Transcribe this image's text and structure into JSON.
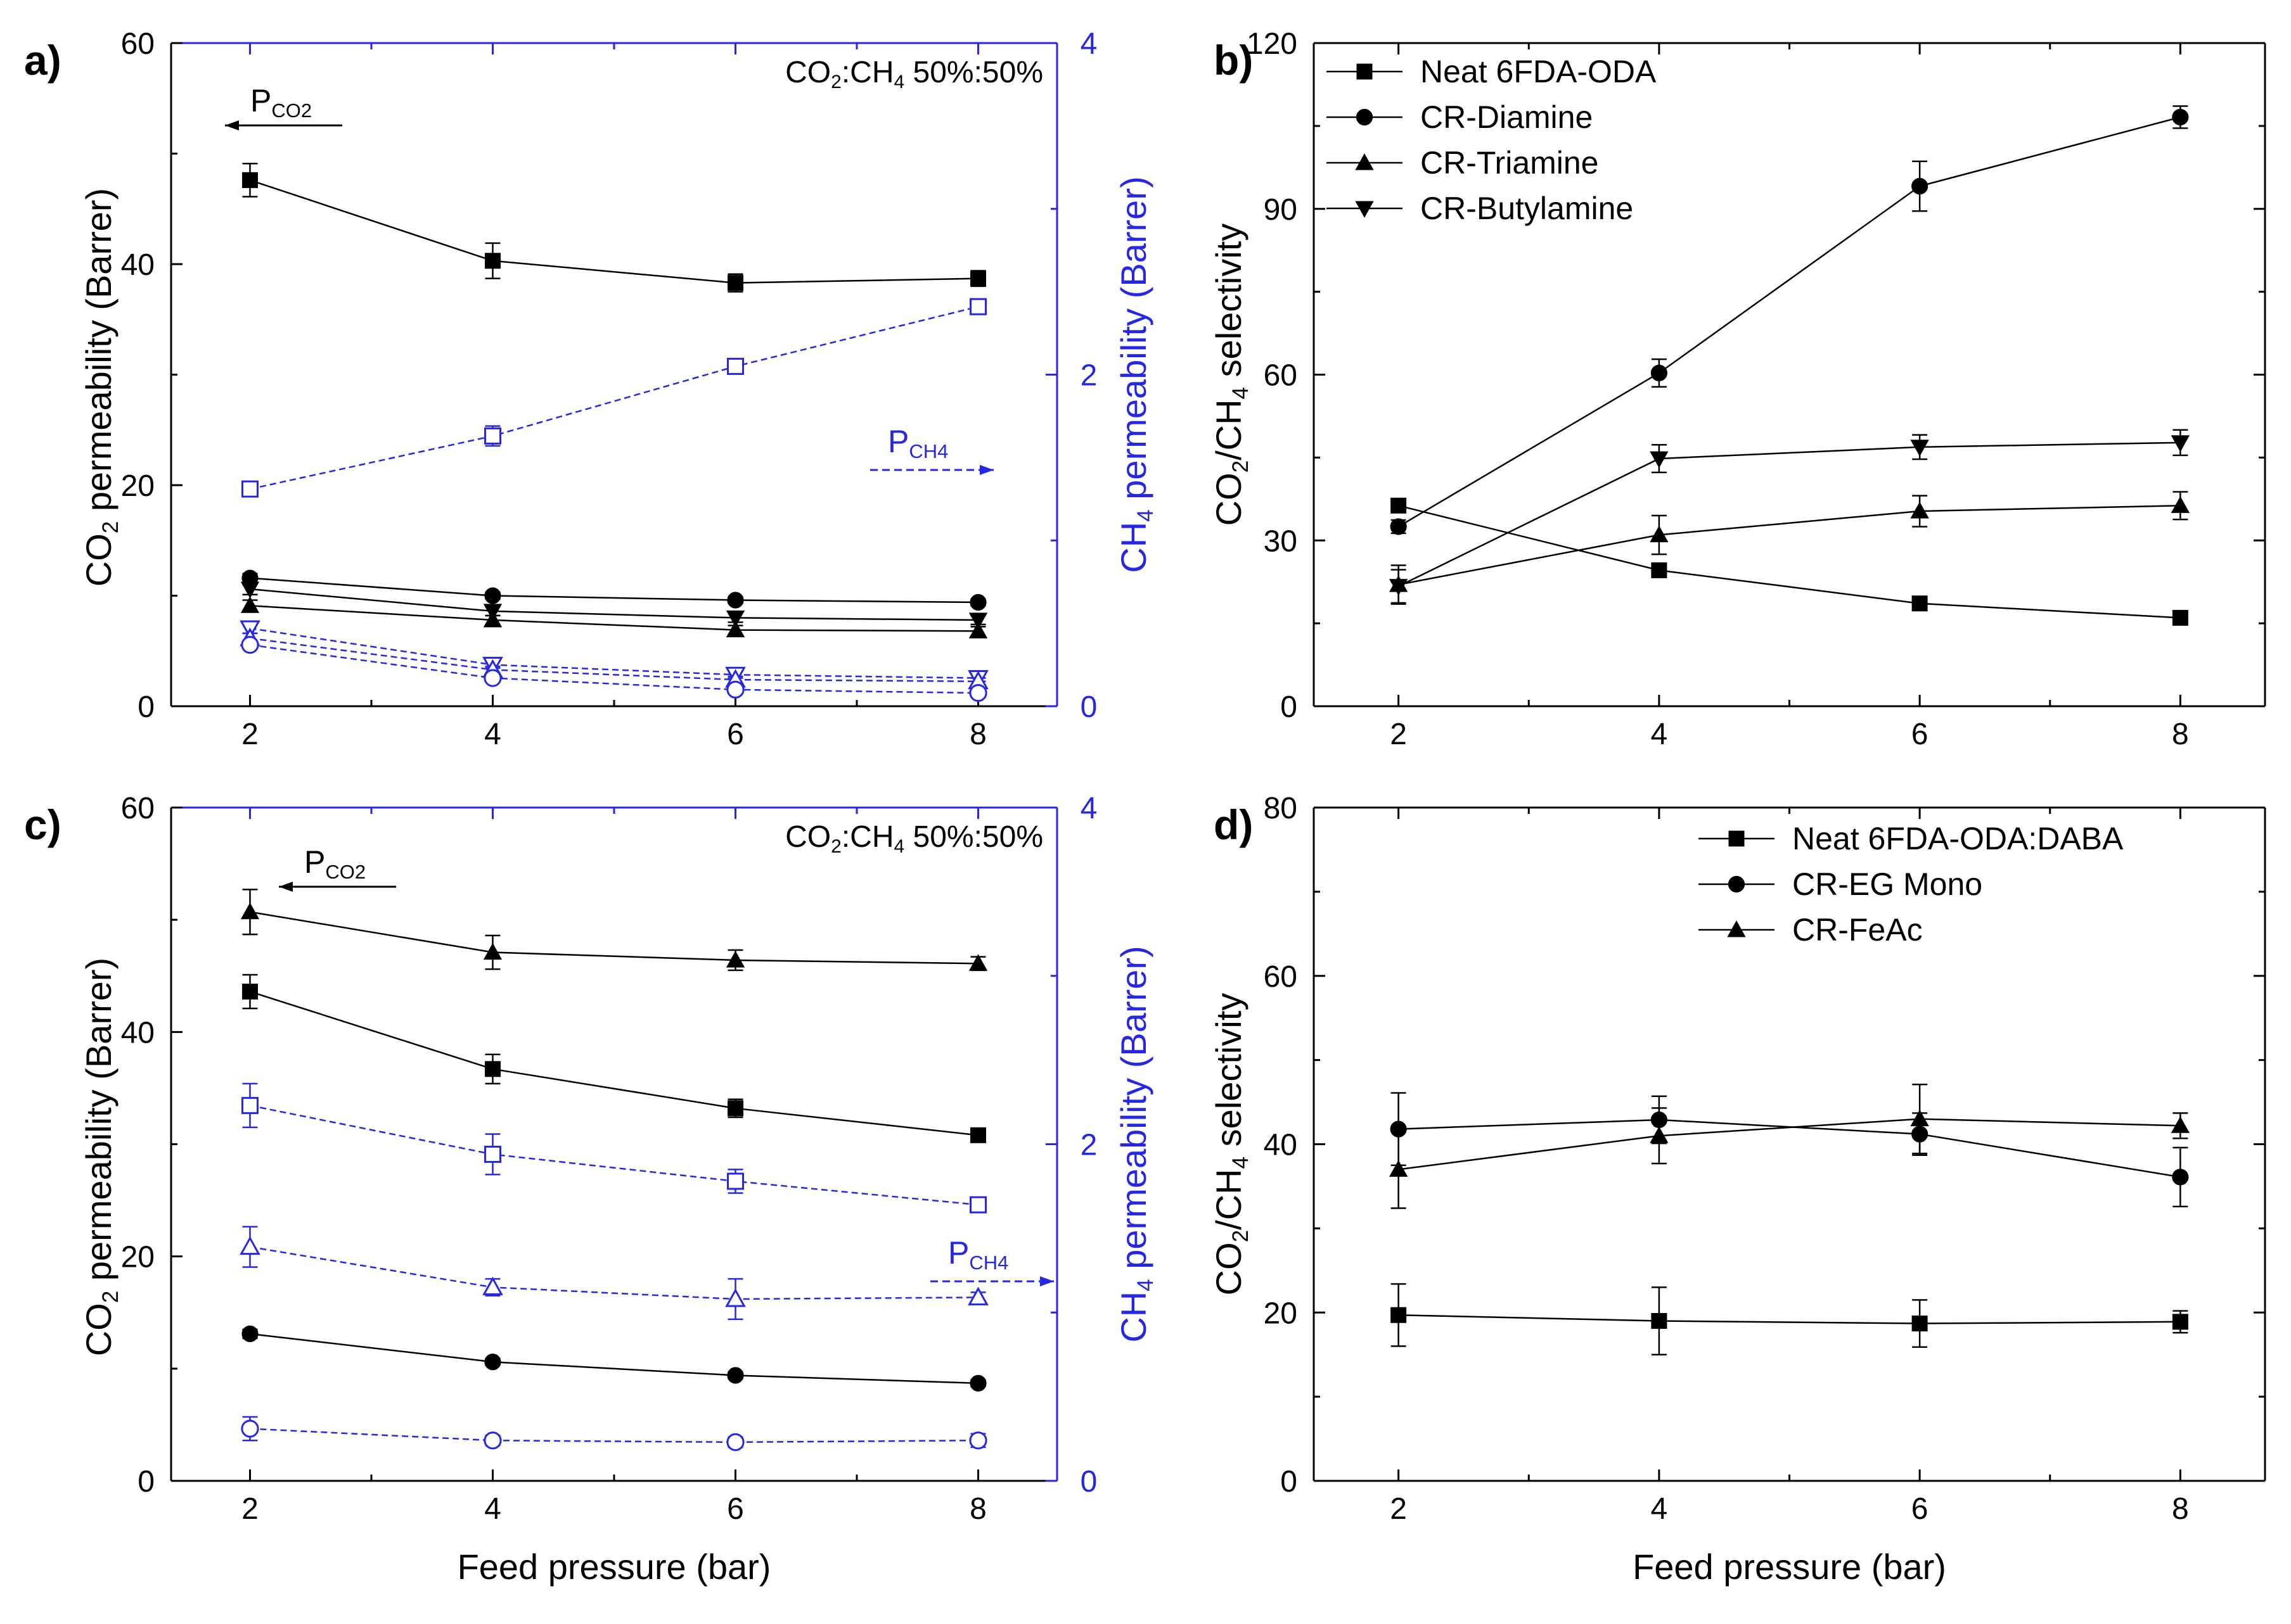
{
  "x_axis_label": "Feed pressure (bar)",
  "colors": {
    "black": "#000000",
    "blue": "#2626e6"
  },
  "chart_data": [
    {
      "panel": "a)",
      "type": "line",
      "annotation": {
        "base": "CO",
        "sub1": "2",
        "mid": ":CH",
        "sub2": "4",
        "tail": " 50%:50%"
      },
      "left_arrow": {
        "base": "P",
        "sub": "CO2"
      },
      "right_arrow": {
        "base": "P",
        "sub": "CH4"
      },
      "ylabel_left": {
        "base": "CO",
        "sub": "2",
        "tail": " permeability (Barrer)"
      },
      "ylabel_right": {
        "base": "CH",
        "sub": "4",
        "tail": " permeability (Barrer)"
      },
      "x": [
        2,
        4,
        6,
        8
      ],
      "xlim": [
        1.35,
        8.65
      ],
      "ylim_left": [
        0,
        60
      ],
      "yticks_left": [
        0,
        20,
        40,
        60
      ],
      "ylim_right": [
        0,
        4
      ],
      "yticks_right": [
        0,
        2,
        4
      ],
      "series": [
        {
          "axis": "left",
          "marker": "square",
          "values": [
            47.6,
            40.3,
            38.3,
            38.7
          ],
          "err": [
            1.5,
            1.6,
            0.8,
            0.7
          ]
        },
        {
          "axis": "left",
          "marker": "circle",
          "values": [
            11.6,
            10.0,
            9.6,
            9.4
          ],
          "err": [
            0.4,
            0.3,
            0.3,
            0.3
          ]
        },
        {
          "axis": "left",
          "marker": "triangle-down",
          "values": [
            10.6,
            8.6,
            8.0,
            7.8
          ],
          "err": [
            0.5,
            0.4,
            0.4,
            0.4
          ]
        },
        {
          "axis": "left",
          "marker": "triangle",
          "values": [
            9.1,
            7.8,
            6.9,
            6.8
          ],
          "err": [
            0.5,
            0.4,
            0.4,
            0.4
          ]
        },
        {
          "axis": "right",
          "marker": "square",
          "values": [
            1.31,
            1.63,
            2.05,
            2.41
          ],
          "err": [
            0.04,
            0.06,
            0.03,
            0.04
          ]
        },
        {
          "axis": "right",
          "marker": "triangle-down",
          "values": [
            0.47,
            0.25,
            0.19,
            0.17
          ],
          "err": [
            0.03,
            0.02,
            0.02,
            0.02
          ]
        },
        {
          "axis": "right",
          "marker": "triangle",
          "values": [
            0.41,
            0.22,
            0.16,
            0.15
          ],
          "err": [
            0.03,
            0.02,
            0.02,
            0.02
          ]
        },
        {
          "axis": "right",
          "marker": "circle",
          "values": [
            0.37,
            0.17,
            0.1,
            0.08
          ],
          "err": [
            0.02,
            0.02,
            0.02,
            0.02
          ]
        }
      ]
    },
    {
      "panel": "b)",
      "type": "line",
      "ylabel": {
        "base": "CO",
        "sub1": "2",
        "mid": "/CH",
        "sub2": "4",
        "tail": " selectivity"
      },
      "x": [
        2,
        4,
        6,
        8
      ],
      "xlim": [
        1.35,
        8.65
      ],
      "ylim": [
        0,
        120
      ],
      "yticks": [
        0,
        30,
        60,
        90,
        120
      ],
      "series": [
        {
          "name": "Neat 6FDA-ODA",
          "marker": "square",
          "values": [
            36.3,
            24.6,
            18.6,
            16.0
          ],
          "err": [
            0.5,
            0.8,
            0.6,
            0.5
          ]
        },
        {
          "name": "CR-Diamine",
          "marker": "circle",
          "values": [
            32.5,
            60.3,
            94.1,
            106.6
          ],
          "err": [
            1.2,
            2.5,
            4.5,
            2.0
          ]
        },
        {
          "name": "CR-Triamine",
          "marker": "triangle",
          "values": [
            22.0,
            31.0,
            35.3,
            36.3
          ],
          "err": [
            3.5,
            3.5,
            2.8,
            2.5
          ]
        },
        {
          "name": "CR-Butylamine",
          "marker": "triangle-down",
          "values": [
            21.7,
            44.8,
            46.9,
            47.7
          ],
          "err": [
            3.0,
            2.5,
            2.2,
            2.3
          ]
        }
      ]
    },
    {
      "panel": "c)",
      "type": "line",
      "annotation": {
        "base": "CO",
        "sub1": "2",
        "mid": ":CH",
        "sub2": "4",
        "tail": " 50%:50%"
      },
      "left_arrow": {
        "base": "P",
        "sub": "CO2"
      },
      "right_arrow": {
        "base": "P",
        "sub": "CH4"
      },
      "ylabel_left": {
        "base": "CO",
        "sub": "2",
        "tail": " permeability (Barrer)"
      },
      "ylabel_right": {
        "base": "CH",
        "sub": "4",
        "tail": " permeability (Barrer)"
      },
      "xlabel": "Feed pressure (bar)",
      "x": [
        2,
        4,
        6,
        8
      ],
      "xlim": [
        1.35,
        8.65
      ],
      "ylim_left": [
        0,
        60
      ],
      "yticks_left": [
        0,
        20,
        40,
        60
      ],
      "ylim_right": [
        0,
        4
      ],
      "yticks_right": [
        0,
        2,
        4
      ],
      "series": [
        {
          "axis": "left",
          "marker": "triangle",
          "values": [
            50.7,
            47.1,
            46.4,
            46.1
          ],
          "err": [
            2.0,
            1.5,
            0.9,
            0.6
          ]
        },
        {
          "axis": "left",
          "marker": "square",
          "values": [
            43.6,
            36.7,
            33.2,
            30.8
          ],
          "err": [
            1.5,
            1.3,
            0.8,
            0.6
          ]
        },
        {
          "axis": "left",
          "marker": "circle",
          "values": [
            13.1,
            10.6,
            9.4,
            8.7
          ],
          "err": [
            0.4,
            0.3,
            0.3,
            0.3
          ]
        },
        {
          "axis": "right",
          "marker": "square",
          "values": [
            2.23,
            1.94,
            1.78,
            1.64
          ],
          "err": [
            0.13,
            0.12,
            0.07,
            0.04
          ]
        },
        {
          "axis": "right",
          "marker": "triangle",
          "values": [
            1.39,
            1.15,
            1.08,
            1.09
          ],
          "err": [
            0.12,
            0.05,
            0.12,
            0.03
          ]
        },
        {
          "axis": "right",
          "marker": "circle",
          "values": [
            0.31,
            0.24,
            0.23,
            0.24
          ],
          "err": [
            0.07,
            0.03,
            0.03,
            0.04
          ]
        }
      ]
    },
    {
      "panel": "d)",
      "type": "line",
      "ylabel": {
        "base": "CO",
        "sub1": "2",
        "mid": "/CH",
        "sub2": "4",
        "tail": " selectivity"
      },
      "xlabel": "Feed pressure (bar)",
      "x": [
        2,
        4,
        6,
        8
      ],
      "xlim": [
        1.35,
        8.65
      ],
      "ylim": [
        0,
        80
      ],
      "yticks": [
        0,
        20,
        40,
        60,
        80
      ],
      "series": [
        {
          "name": "Neat 6FDA-ODA:DABA",
          "marker": "square",
          "values": [
            19.7,
            19.0,
            18.7,
            18.9
          ],
          "err": [
            3.7,
            4.0,
            2.8,
            1.3
          ]
        },
        {
          "name": "CR-EG Mono",
          "marker": "circle",
          "values": [
            41.8,
            42.9,
            41.2,
            36.1
          ],
          "err": [
            4.3,
            2.8,
            2.5,
            3.5
          ]
        },
        {
          "name": "CR-FeAc",
          "marker": "triangle",
          "values": [
            37.0,
            41.0,
            43.0,
            42.2
          ],
          "err": [
            4.6,
            3.3,
            4.1,
            1.5
          ]
        }
      ]
    }
  ]
}
